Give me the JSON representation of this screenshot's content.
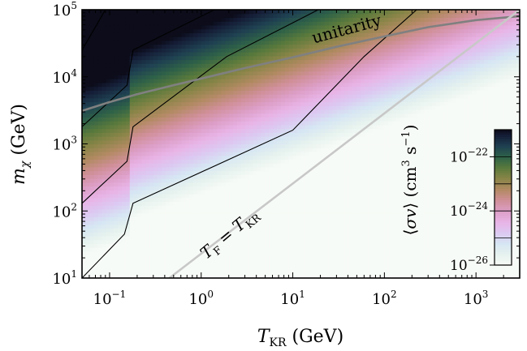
{
  "chart_data": {
    "type": "heatmap",
    "title": "",
    "xlabel": "T_KR (GeV)",
    "ylabel": "m_χ (GeV)",
    "x_scale": "log",
    "y_scale": "log",
    "xlim": [
      0.05,
      3000
    ],
    "ylim": [
      10,
      100000
    ],
    "x_ticks": [
      {
        "value": 0.1,
        "label": "10^-1"
      },
      {
        "value": 1,
        "label": "10^0"
      },
      {
        "value": 10,
        "label": "10^1"
      },
      {
        "value": 100,
        "label": "10^2"
      },
      {
        "value": 1000,
        "label": "10^3"
      }
    ],
    "y_ticks": [
      {
        "value": 10,
        "label": "10^1"
      },
      {
        "value": 100,
        "label": "10^2"
      },
      {
        "value": 1000,
        "label": "10^3"
      },
      {
        "value": 10000,
        "label": "10^4"
      },
      {
        "value": 100000,
        "label": "10^5"
      }
    ],
    "colorbar": {
      "label": "⟨σv⟩ (cm^3 s^-1)",
      "scale": "log",
      "range": [
        1e-26,
        1e-21
      ],
      "ticks": [
        {
          "value": 1e-26,
          "label": "10^-26"
        },
        {
          "value": 1e-24,
          "label": "10^-24"
        },
        {
          "value": 1e-22,
          "label": "10^-22"
        }
      ],
      "colormap": "cubehelix",
      "levels": [
        {
          "log_value": -26.0,
          "color": "#f7fbf7"
        },
        {
          "log_value": -25.6,
          "color": "#e6f2ee"
        },
        {
          "log_value": -25.2,
          "color": "#d6e6f3"
        },
        {
          "log_value": -24.8,
          "color": "#dcc9f2"
        },
        {
          "log_value": -24.4,
          "color": "#e8b4e6"
        },
        {
          "log_value": -24.0,
          "color": "#dc9ec6"
        },
        {
          "log_value": -23.6,
          "color": "#d08f98"
        },
        {
          "log_value": -23.2,
          "color": "#b28a63"
        },
        {
          "log_value": -22.8,
          "color": "#8a8548"
        },
        {
          "log_value": -22.4,
          "color": "#5a7a3c"
        },
        {
          "log_value": -22.0,
          "color": "#2f6248"
        },
        {
          "log_value": -21.6,
          "color": "#1f4152"
        },
        {
          "log_value": -21.2,
          "color": "#151d36"
        },
        {
          "log_value": -21.0,
          "color": "#0c0c1a"
        }
      ]
    },
    "contours": [
      {
        "points": [
          [
            0.05,
            25000
          ],
          [
            0.09,
            100000
          ]
        ]
      },
      {
        "points": [
          [
            0.05,
            1800
          ],
          [
            0.155,
            7500
          ],
          [
            0.18,
            25000
          ],
          [
            1.4,
            100000
          ]
        ]
      },
      {
        "points": [
          [
            0.05,
            130
          ],
          [
            0.155,
            550
          ],
          [
            0.18,
            1800
          ],
          [
            1.9,
            20000
          ],
          [
            19,
            100000
          ]
        ]
      },
      {
        "points": [
          [
            0.05,
            10
          ],
          [
            0.145,
            45
          ],
          [
            0.18,
            130
          ],
          [
            10,
            1600
          ],
          [
            60,
            20000
          ],
          [
            225,
            100000
          ]
        ]
      }
    ],
    "series": [
      {
        "name": "unitarity",
        "color": "#808080",
        "points": [
          [
            0.05,
            3100
          ],
          [
            0.1,
            4200
          ],
          [
            0.2,
            5500
          ],
          [
            0.5,
            7500
          ],
          [
            1,
            9400
          ],
          [
            3,
            13500
          ],
          [
            10,
            19500
          ],
          [
            30,
            28000
          ],
          [
            100,
            40000
          ],
          [
            300,
            55000
          ],
          [
            1000,
            70000
          ],
          [
            3000,
            80000
          ]
        ]
      },
      {
        "name": "T_F = T_KR",
        "color": "#c8c8c8",
        "points": [
          [
            0.45,
            10
          ],
          [
            3000,
            100000
          ]
        ]
      }
    ],
    "annotations": [
      {
        "text": "unitarity",
        "x": 40,
        "y": 43000,
        "angle_deg": -15
      },
      {
        "text": "T_F = T_KR",
        "x": 2.2,
        "y": 40,
        "angle_deg": -40
      }
    ],
    "grid": false,
    "legend": "none"
  }
}
